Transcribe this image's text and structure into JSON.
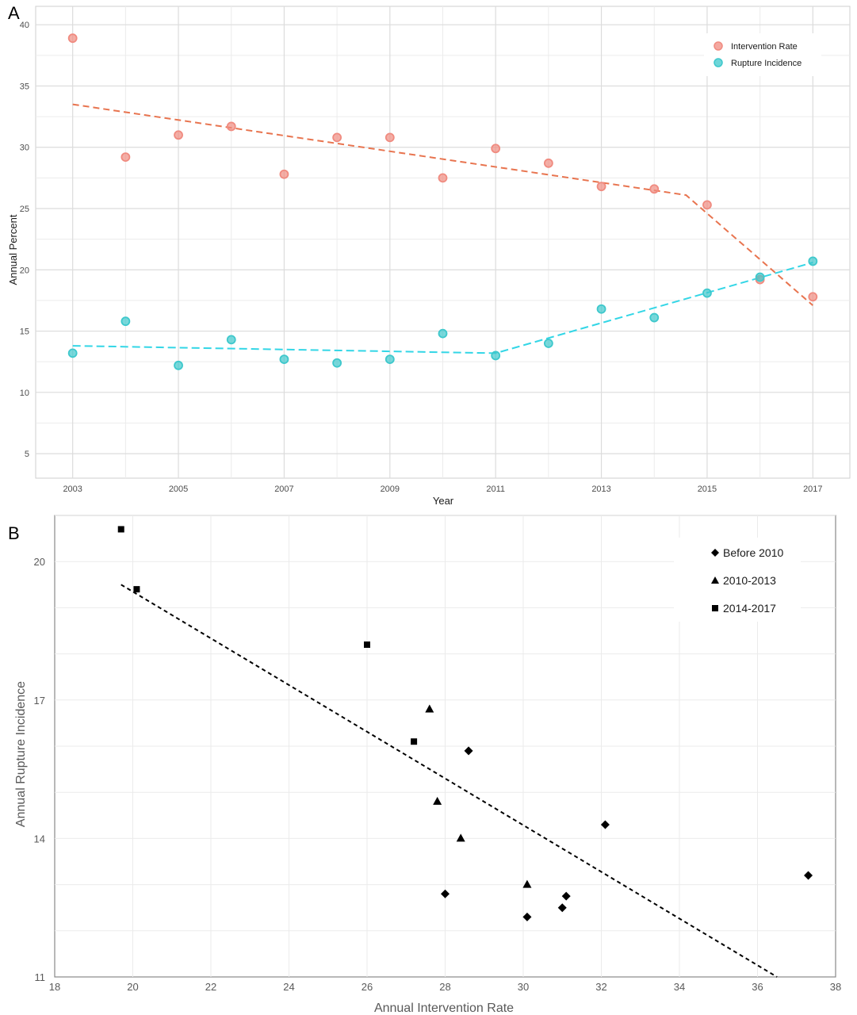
{
  "panel_labels": {
    "a": "A",
    "b": "B"
  },
  "chart_data": [
    {
      "panel": "A",
      "type": "scatter",
      "xlabel": "Year",
      "ylabel": "Annual Percent",
      "xlim": [
        2002.3,
        2017.7
      ],
      "ylim": [
        3,
        41.5
      ],
      "xticks": [
        "2003",
        "2005",
        "2007",
        "2009",
        "2011",
        "2013",
        "2015",
        "2017"
      ],
      "yticks": [
        "5",
        "10",
        "15",
        "20",
        "25",
        "30",
        "35",
        "40"
      ],
      "grid": true,
      "legend_position": "top-right",
      "colors": {
        "intervention": "#f08b80",
        "rupture": "#3ec8cc",
        "intervention_trend": "#e8744f",
        "rupture_trend": "#33d6e6"
      },
      "series": [
        {
          "name": "Intervention Rate",
          "x": [
            2003,
            2004,
            2005,
            2006,
            2007,
            2008,
            2009,
            2010,
            2011,
            2012,
            2013,
            2014,
            2015,
            2016,
            2017
          ],
          "y": [
            38.9,
            29.2,
            31.0,
            31.7,
            27.8,
            30.8,
            30.8,
            27.5,
            29.9,
            28.7,
            26.8,
            26.6,
            25.3,
            19.2,
            17.8
          ],
          "trend": {
            "x": [
              2003,
              2014.6,
              2017
            ],
            "y": [
              33.5,
              26.1,
              17.1
            ]
          }
        },
        {
          "name": "Rupture Incidence",
          "x": [
            2003,
            2004,
            2005,
            2006,
            2007,
            2008,
            2009,
            2010,
            2011,
            2012,
            2013,
            2014,
            2015,
            2016,
            2017
          ],
          "y": [
            13.2,
            15.8,
            12.2,
            14.3,
            12.7,
            12.4,
            12.7,
            14.8,
            13.0,
            14.0,
            16.8,
            16.1,
            18.1,
            19.4,
            20.7
          ],
          "trend": {
            "x": [
              2003,
              2011,
              2017
            ],
            "y": [
              13.8,
              13.2,
              20.6
            ]
          }
        }
      ]
    },
    {
      "panel": "B",
      "type": "scatter",
      "xlabel": "Annual Intervention Rate",
      "ylabel": "Annual Rupture Incidence",
      "xlim": [
        18,
        38
      ],
      "ylim": [
        11,
        21
      ],
      "xticks": [
        "18",
        "20",
        "22",
        "24",
        "26",
        "28",
        "30",
        "32",
        "34",
        "36",
        "38"
      ],
      "yticks": [
        "11",
        "14",
        "17",
        "20"
      ],
      "grid": true,
      "legend_position": "top-right",
      "series": [
        {
          "name": "Before 2010",
          "marker": "diamond",
          "x": [
            28.6,
            28.0,
            30.1,
            31.0,
            31.1,
            32.1,
            37.3
          ],
          "y": [
            15.9,
            12.8,
            12.3,
            12.5,
            12.75,
            14.3,
            13.2
          ]
        },
        {
          "name": "2010-2013",
          "marker": "triangle",
          "x": [
            27.6,
            27.8,
            28.4,
            30.1
          ],
          "y": [
            16.8,
            14.8,
            14.0,
            13.0
          ]
        },
        {
          "name": "2014-2017",
          "marker": "square",
          "x": [
            19.7,
            20.1,
            26.0,
            27.2
          ],
          "y": [
            20.7,
            19.4,
            18.2,
            16.1
          ]
        }
      ],
      "trend": {
        "x": [
          19.7,
          36.5
        ],
        "y": [
          19.5,
          11.0
        ]
      }
    }
  ]
}
